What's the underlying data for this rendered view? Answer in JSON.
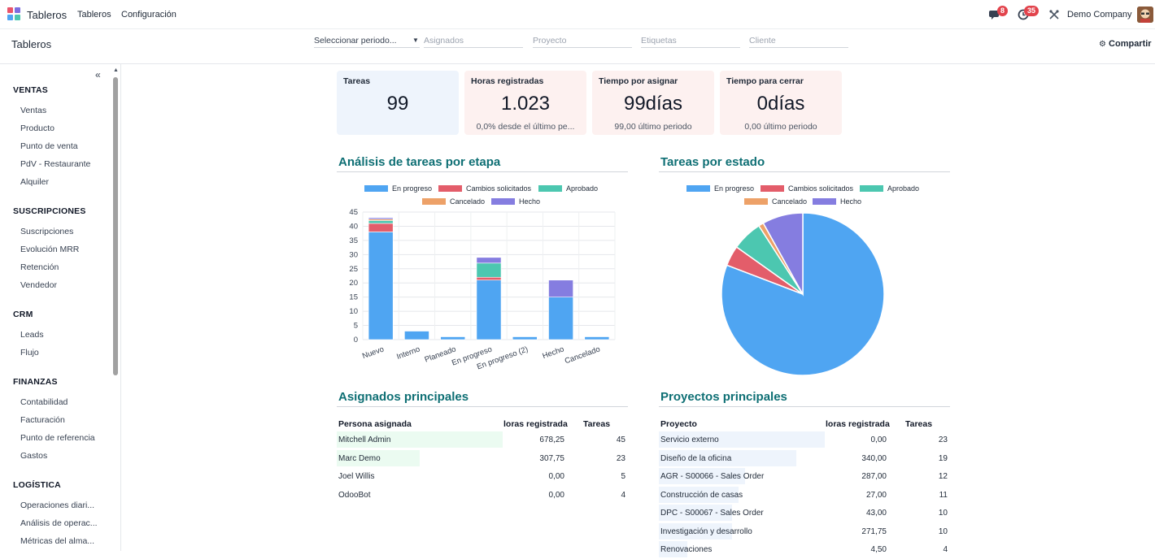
{
  "navbar": {
    "app_name": "Tableros",
    "menu": [
      "Tableros",
      "Configuración"
    ],
    "messages_count": "8",
    "activities_count": "35",
    "company": "Demo Company"
  },
  "control": {
    "breadcrumb": "Tableros",
    "period_select": "Seleccionar periodo...",
    "filters": [
      "Asignados",
      "Proyecto",
      "Etiquetas",
      "Cliente"
    ],
    "share_label": "Compartir"
  },
  "sidebar": {
    "sections": [
      {
        "title": "VENTAS",
        "items": [
          "Ventas",
          "Producto",
          "Punto de venta",
          "PdV - Restaurante",
          "Alquiler"
        ]
      },
      {
        "title": "SUSCRIPCIONES",
        "items": [
          "Suscripciones",
          "Evolución MRR",
          "Retención",
          "Vendedor"
        ]
      },
      {
        "title": "CRM",
        "items": [
          "Leads",
          "Flujo"
        ]
      },
      {
        "title": "FINANZAS",
        "items": [
          "Contabilidad",
          "Facturación",
          "Punto de referencia",
          "Gastos"
        ]
      },
      {
        "title": "LOGÍSTICA",
        "items": [
          "Operaciones diari...",
          "Análisis de operac...",
          "Métricas del alma..."
        ]
      }
    ]
  },
  "kpis": [
    {
      "title": "Tareas",
      "value": "99",
      "sub": "",
      "bg": "#eef4fc"
    },
    {
      "title": "Horas registradas",
      "value": "1.023",
      "sub": "0,0% desde el último pe...",
      "bg": "#fdf1f0"
    },
    {
      "title": "Tiempo por asignar",
      "value": "99días",
      "sub": "99,00 último periodo",
      "bg": "#fdf1f0"
    },
    {
      "title": "Tiempo para cerrar",
      "value": "0días",
      "sub": "0,00 último periodo",
      "bg": "#fdf1f0"
    }
  ],
  "colors": {
    "en_progreso": "#4fa5f2",
    "cambios": "#e35d6a",
    "aprobado": "#4cc7b0",
    "cancelado": "#eda168",
    "hecho": "#857de0",
    "accent": "#0e6f74"
  },
  "sections": {
    "stage_title": "Análisis de tareas por etapa",
    "state_title": "Tareas por estado",
    "assignees_title": "Asignados principales",
    "projects_title": "Proyectos principales"
  },
  "chart_data": [
    {
      "type": "bar",
      "stacked": true,
      "title": "Análisis de tareas por etapa",
      "categories": [
        "Nuevo",
        "Interno",
        "Planeado",
        "En progreso",
        "En progreso (2)",
        "Hecho",
        "Cancelado"
      ],
      "series": [
        {
          "name": "En progreso",
          "values": [
            38,
            3,
            1,
            21,
            1,
            15,
            1
          ]
        },
        {
          "name": "Cambios solicitados",
          "values": [
            3,
            0,
            0,
            1,
            0,
            0,
            0
          ]
        },
        {
          "name": "Aprobado",
          "values": [
            1,
            0,
            0,
            5,
            0,
            0,
            0
          ]
        },
        {
          "name": "Cancelado",
          "values": [
            0.5,
            0,
            0,
            0,
            0,
            0,
            0
          ]
        },
        {
          "name": "Hecho",
          "values": [
            0.5,
            0,
            0,
            2,
            0,
            6,
            0
          ]
        }
      ],
      "yticks": [
        0,
        5,
        10,
        15,
        20,
        25,
        30,
        35,
        40,
        45
      ],
      "ylim": [
        0,
        45
      ],
      "grid": true,
      "legend": "top"
    },
    {
      "type": "pie",
      "title": "Tareas por estado",
      "labels": [
        "En progreso",
        "Cambios solicitados",
        "Aprobado",
        "Cancelado",
        "Hecho"
      ],
      "values": [
        80,
        4,
        6,
        1,
        8
      ],
      "legend": "top"
    }
  ],
  "assignees": {
    "headers": [
      "Persona asignada",
      "loras registrada",
      "Tareas"
    ],
    "rows": [
      {
        "name": "Mitchell Admin",
        "hours": "678,25",
        "tasks": "45",
        "ratio": 1.0
      },
      {
        "name": "Marc Demo",
        "hours": "307,75",
        "tasks": "23",
        "ratio": 0.5
      },
      {
        "name": "Joel Willis",
        "hours": "0,00",
        "tasks": "5",
        "ratio": 0
      },
      {
        "name": "OdooBot",
        "hours": "0,00",
        "tasks": "4",
        "ratio": 0
      }
    ]
  },
  "projects": {
    "headers": [
      "Proyecto",
      "loras registrada",
      "Tareas"
    ],
    "rows": [
      {
        "name": "Servicio externo",
        "hours": "0,00",
        "tasks": "23",
        "ratio": 1.0
      },
      {
        "name": "Diseño de la oficina",
        "hours": "340,00",
        "tasks": "19",
        "ratio": 0.83
      },
      {
        "name": "AGR - S00066 - Sales Order",
        "hours": "287,00",
        "tasks": "12",
        "ratio": 0.52
      },
      {
        "name": "Construcción de casas",
        "hours": "27,00",
        "tasks": "11",
        "ratio": 0.48
      },
      {
        "name": "DPC - S00067 - Sales Order",
        "hours": "43,00",
        "tasks": "10",
        "ratio": 0.44
      },
      {
        "name": "Investigación y desarrollo",
        "hours": "271,75",
        "tasks": "10",
        "ratio": 0.44
      },
      {
        "name": "Renovaciones",
        "hours": "4,50",
        "tasks": "4",
        "ratio": 0.17
      }
    ]
  }
}
